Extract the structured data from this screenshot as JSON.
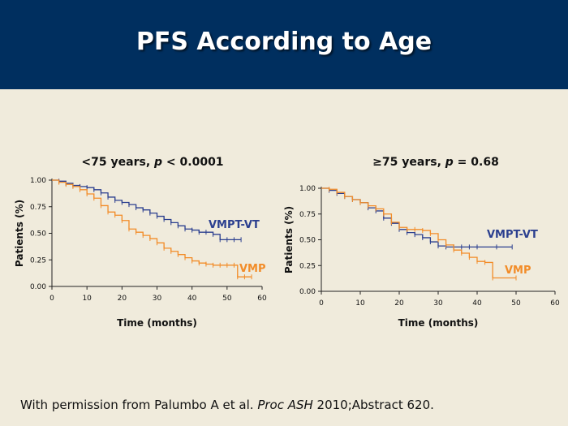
{
  "slide": {
    "title": "PFS According to Age",
    "colors": {
      "header_bg": "#002f5f",
      "background": "#f0ebdc"
    },
    "footer": {
      "prefix": "With permission from Palumbo A et al. ",
      "journal": "Proc ASH",
      "suffix": " 2010;Abstract 620."
    }
  },
  "chart_data": [
    {
      "type": "line",
      "step": true,
      "title_parts": {
        "text": "<75 years, ",
        "p": "p",
        "rest": " < 0.0001"
      },
      "xlabel": "Time (months)",
      "ylabel": "Patients (%)",
      "xlim": [
        0,
        60
      ],
      "ylim": [
        0,
        1
      ],
      "xticks": [
        "0",
        "10",
        "20",
        "30",
        "40",
        "50",
        "60"
      ],
      "yticks": [
        "0.00",
        "0.25",
        "0.50",
        "0.75",
        "1.00"
      ],
      "grid": false,
      "series": [
        {
          "name": "VMPT-VT",
          "color": "#2b3f8f",
          "x": [
            0,
            2,
            4,
            6,
            8,
            10,
            12,
            14,
            16,
            18,
            20,
            22,
            24,
            26,
            28,
            30,
            32,
            34,
            36,
            38,
            40,
            42,
            44,
            46,
            48,
            50,
            52,
            54
          ],
          "y": [
            1.0,
            0.99,
            0.97,
            0.95,
            0.94,
            0.93,
            0.91,
            0.88,
            0.84,
            0.81,
            0.79,
            0.77,
            0.74,
            0.72,
            0.69,
            0.66,
            0.63,
            0.6,
            0.57,
            0.54,
            0.53,
            0.51,
            0.51,
            0.49,
            0.44,
            0.44,
            0.44,
            0.44
          ]
        },
        {
          "name": "VMP",
          "color": "#f28c28",
          "x": [
            0,
            2,
            4,
            6,
            8,
            10,
            12,
            14,
            16,
            18,
            20,
            22,
            24,
            26,
            28,
            30,
            32,
            34,
            36,
            38,
            40,
            42,
            44,
            46,
            48,
            50,
            52,
            53,
            55,
            57
          ],
          "y": [
            1.0,
            0.98,
            0.96,
            0.94,
            0.91,
            0.87,
            0.83,
            0.76,
            0.7,
            0.67,
            0.62,
            0.54,
            0.51,
            0.48,
            0.45,
            0.41,
            0.36,
            0.33,
            0.3,
            0.27,
            0.24,
            0.22,
            0.21,
            0.2,
            0.2,
            0.2,
            0.2,
            0.09,
            0.09,
            0.09
          ]
        }
      ]
    },
    {
      "type": "line",
      "step": true,
      "title_parts": {
        "text": "≥75 years, ",
        "p": "p",
        "rest": " = 0.68"
      },
      "xlabel": "Time (months)",
      "ylabel": "Patients (%)",
      "xlim": [
        0,
        60
      ],
      "ylim": [
        0,
        1
      ],
      "xticks": [
        "0",
        "10",
        "20",
        "30",
        "40",
        "50",
        "60"
      ],
      "yticks": [
        "0.00",
        "0.25",
        "0.50",
        "0.75",
        "1.00"
      ],
      "grid": false,
      "series": [
        {
          "name": "VMPT-VT",
          "color": "#2b3f8f",
          "x": [
            0,
            2,
            4,
            6,
            8,
            10,
            12,
            14,
            16,
            18,
            20,
            22,
            24,
            26,
            28,
            30,
            32,
            34,
            36,
            38,
            40,
            45,
            49
          ],
          "y": [
            1.0,
            0.98,
            0.95,
            0.92,
            0.89,
            0.86,
            0.81,
            0.78,
            0.71,
            0.66,
            0.6,
            0.57,
            0.55,
            0.52,
            0.48,
            0.44,
            0.43,
            0.43,
            0.43,
            0.43,
            0.43,
            0.43,
            0.43
          ]
        },
        {
          "name": "VMP",
          "color": "#f28c28",
          "x": [
            0,
            2,
            4,
            6,
            8,
            10,
            12,
            14,
            16,
            18,
            20,
            22,
            24,
            26,
            28,
            30,
            32,
            34,
            36,
            38,
            40,
            42,
            44,
            50
          ],
          "y": [
            1.0,
            0.99,
            0.96,
            0.92,
            0.89,
            0.86,
            0.83,
            0.8,
            0.75,
            0.67,
            0.62,
            0.6,
            0.6,
            0.59,
            0.56,
            0.5,
            0.45,
            0.4,
            0.37,
            0.33,
            0.29,
            0.28,
            0.13,
            0.13
          ]
        }
      ]
    }
  ]
}
